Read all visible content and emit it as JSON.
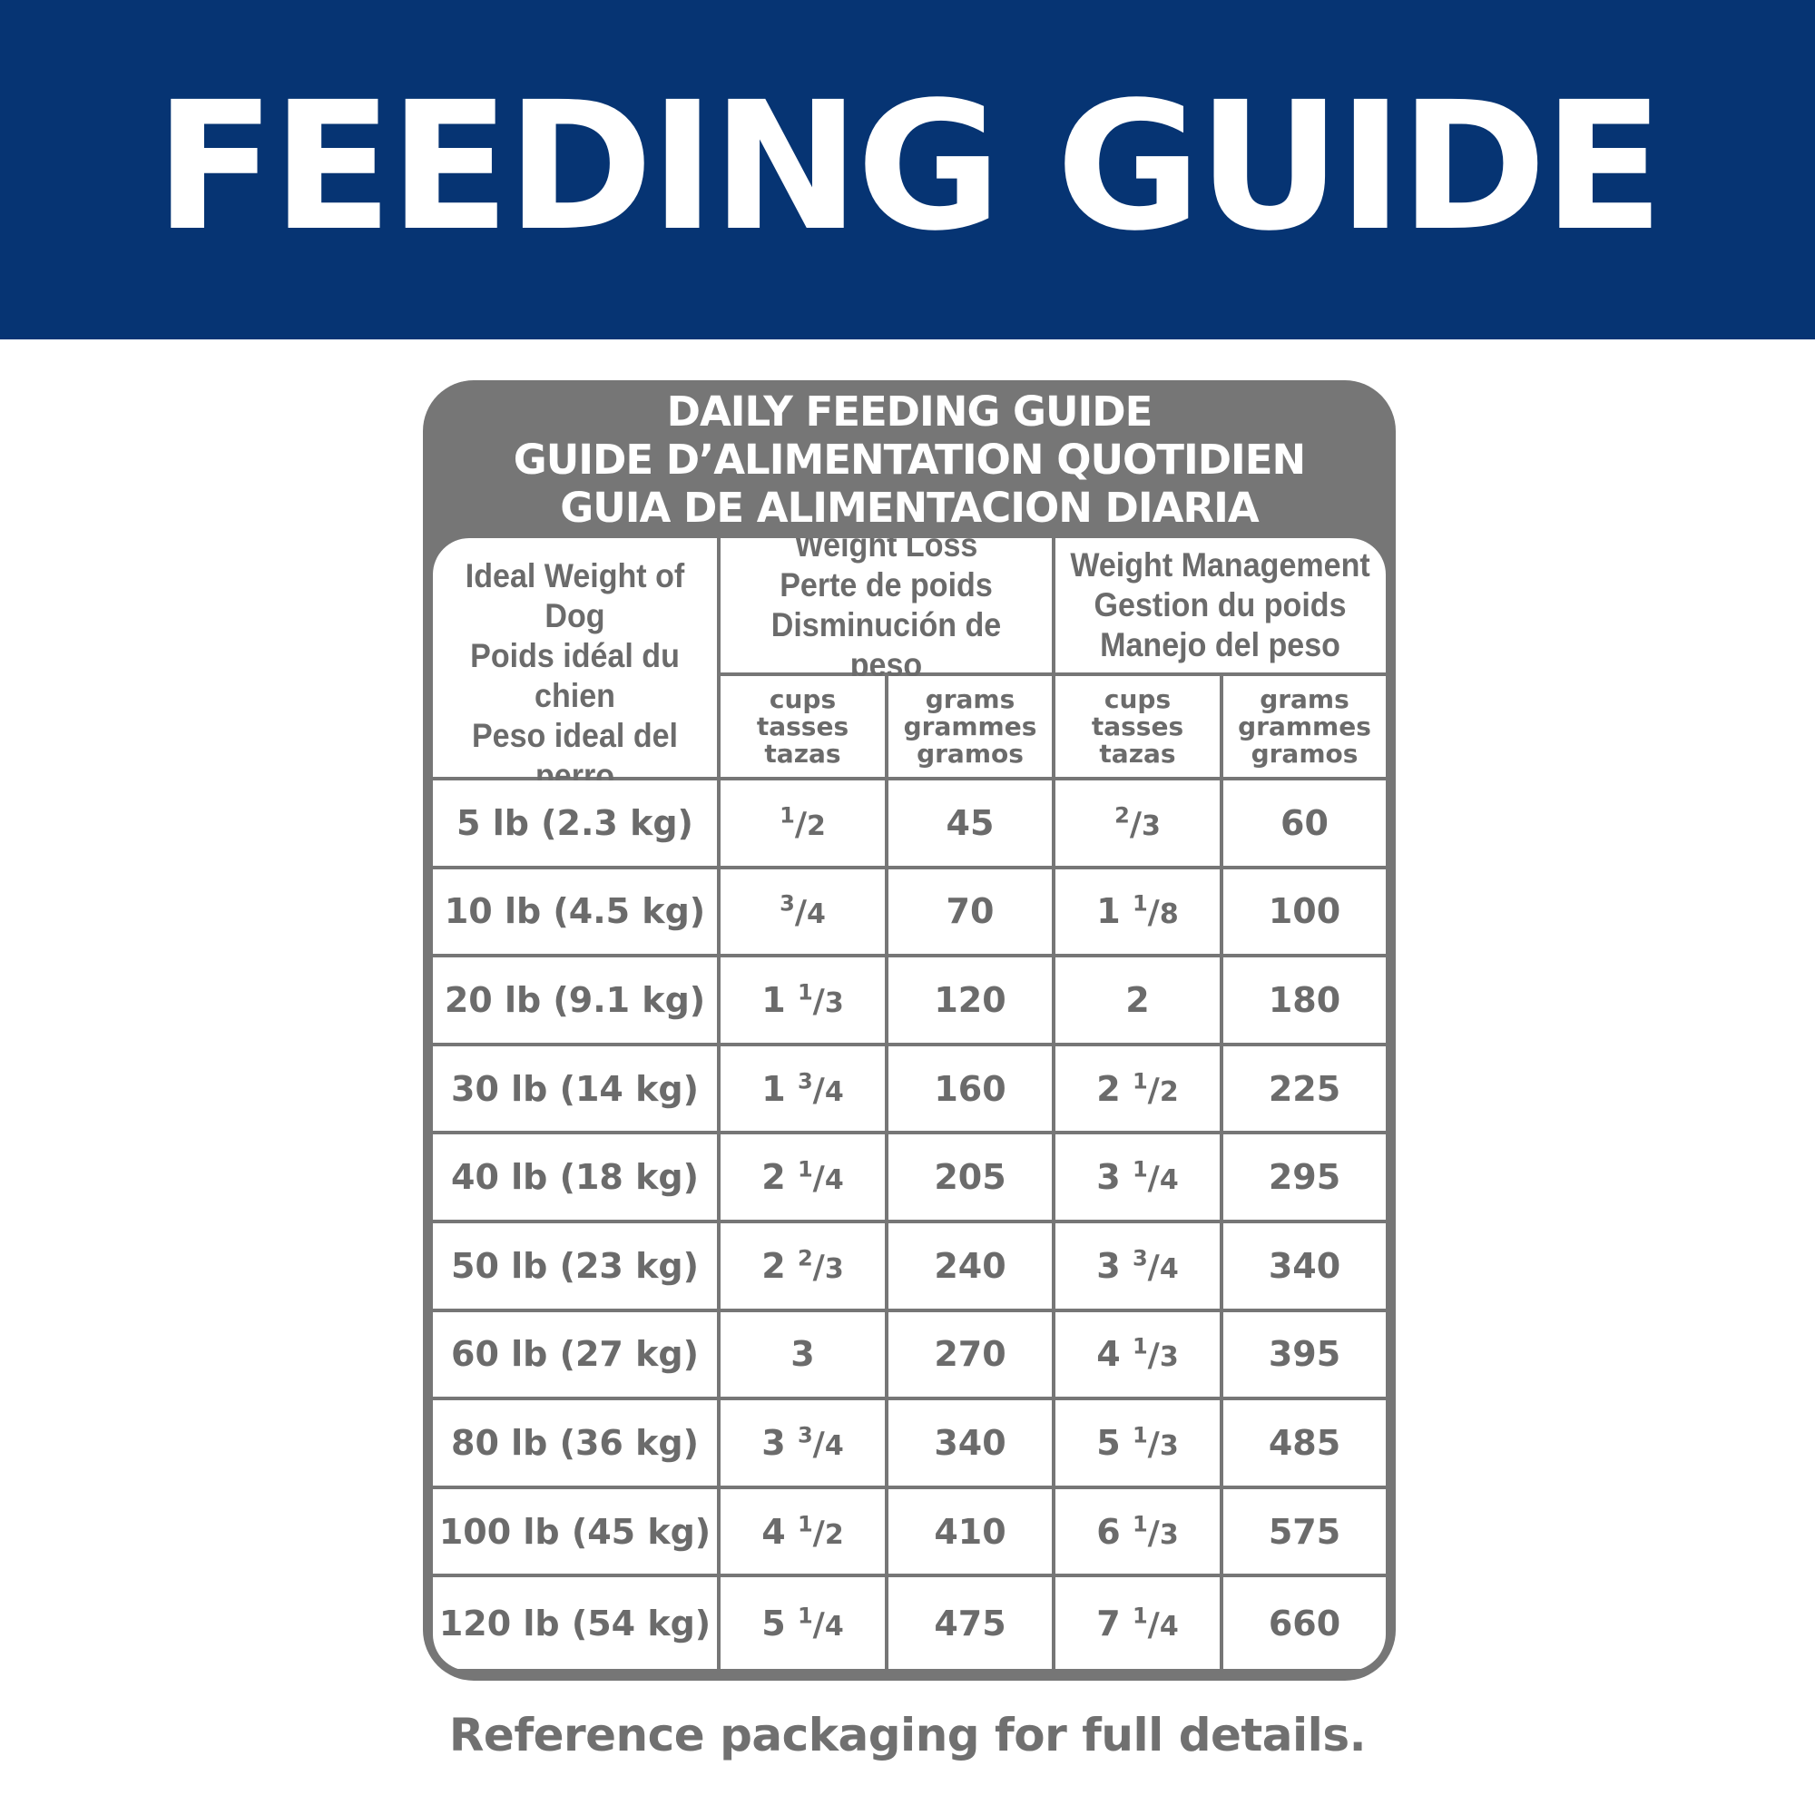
{
  "banner": {
    "title": "FEEDING GUIDE"
  },
  "panel": {
    "title_lines": [
      "DAILY FEEDING GUIDE",
      "GUIDE D’ALIMENTATION QUOTIDIEN",
      "GUIA DE ALIMENTACION DIARIA"
    ]
  },
  "table": {
    "weight_header": [
      "Ideal Weight of Dog",
      "Poids idéal du chien",
      "Peso ideal del perro"
    ],
    "weight_loss_header": [
      "Weight Loss",
      "Perte de poids",
      "Disminución de peso"
    ],
    "weight_management_header": [
      "Weight Management",
      "Gestion du poids",
      "Manejo del peso"
    ],
    "cups_header": [
      "cups",
      "tasses",
      "tazas"
    ],
    "grams_header": [
      "grams",
      "grammes",
      "gramos"
    ],
    "rows": [
      {
        "weight": "5 lb (2.3 kg)",
        "loss_cups": "1/2",
        "loss_grams": "45",
        "mgmt_cups": "2/3",
        "mgmt_grams": "60"
      },
      {
        "weight": "10 lb (4.5 kg)",
        "loss_cups": "3/4",
        "loss_grams": "70",
        "mgmt_cups": "1 1/8",
        "mgmt_grams": "100"
      },
      {
        "weight": "20 lb (9.1 kg)",
        "loss_cups": "1 1/3",
        "loss_grams": "120",
        "mgmt_cups": "2",
        "mgmt_grams": "180"
      },
      {
        "weight": "30 lb (14 kg)",
        "loss_cups": "1 3/4",
        "loss_grams": "160",
        "mgmt_cups": "2 1/2",
        "mgmt_grams": "225"
      },
      {
        "weight": "40 lb (18 kg)",
        "loss_cups": "2 1/4",
        "loss_grams": "205",
        "mgmt_cups": "3 1/4",
        "mgmt_grams": "295"
      },
      {
        "weight": "50 lb (23 kg)",
        "loss_cups": "2 2/3",
        "loss_grams": "240",
        "mgmt_cups": "3 3/4",
        "mgmt_grams": "340"
      },
      {
        "weight": "60 lb (27 kg)",
        "loss_cups": "3",
        "loss_grams": "270",
        "mgmt_cups": "4 1/3",
        "mgmt_grams": "395"
      },
      {
        "weight": "80 lb (36 kg)",
        "loss_cups": "3 3/4",
        "loss_grams": "340",
        "mgmt_cups": "5 1/3",
        "mgmt_grams": "485"
      },
      {
        "weight": "100 lb (45 kg)",
        "loss_cups": "4 1/2",
        "loss_grams": "410",
        "mgmt_cups": "6 1/3",
        "mgmt_grams": "575"
      },
      {
        "weight": "120 lb (54 kg)",
        "loss_cups": "5 1/4",
        "loss_grams": "475",
        "mgmt_cups": "7 1/4",
        "mgmt_grams": "660"
      }
    ]
  },
  "footer": {
    "note": "Reference packaging for full details."
  },
  "colors": {
    "banner": "#063473",
    "panel": "#767676",
    "text_gray": "#6b6b6b"
  }
}
